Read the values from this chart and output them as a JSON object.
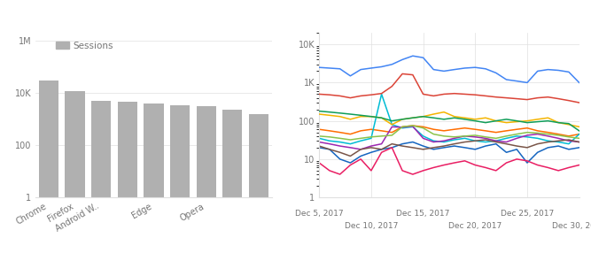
{
  "bar_values": [
    30000,
    12000,
    5000,
    4500,
    3800,
    3500,
    3000,
    2200,
    1600
  ],
  "bar_labels": [
    "Chrome",
    "Firefox",
    "Android W..",
    "",
    "Edge",
    "",
    "Opera",
    "",
    ""
  ],
  "bar_color": "#b0b0b0",
  "legend_label": "Sessions",
  "ts_colors": {
    "Chrome": "#4285f4",
    "Safari": "#db4437",
    "Firefox": "#f4b400",
    "IE": "#0f9d58",
    "line5": "#ff6d00",
    "line6": "#00bcd4",
    "line7": "#9c27b0",
    "line8": "#8bc34a",
    "line9": "#1565c0",
    "line10": "#e91e63",
    "line11": "#795548"
  },
  "grid_color": "#e0e0e0",
  "text_color": "#757575",
  "border_color": "#e0e0e0"
}
